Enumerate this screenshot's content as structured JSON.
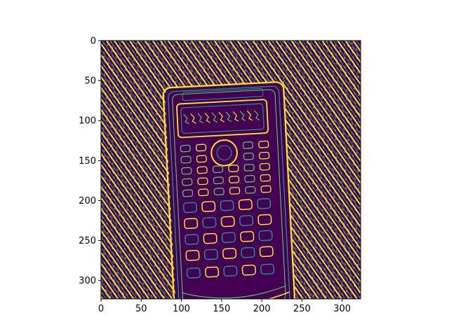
{
  "chart_data": {
    "type": "heatmap",
    "title": "",
    "xlabel": "",
    "ylabel": "",
    "xlim": [
      0,
      323
    ],
    "ylim": [
      323,
      0
    ],
    "x_ticks": [
      0,
      50,
      100,
      150,
      200,
      250,
      300
    ],
    "y_ticks": [
      0,
      50,
      100,
      150,
      200,
      250,
      300
    ],
    "x_tick_labels": [
      "0",
      "50",
      "100",
      "150",
      "200",
      "250",
      "300"
    ],
    "y_tick_labels": [
      "0",
      "50",
      "100",
      "150",
      "200",
      "250",
      "300"
    ],
    "image_size": [
      323,
      323
    ],
    "colormap": "viridis",
    "content": "binary edge map of a scientific calculator on a diagonally striped background",
    "colors": {
      "background": "#440154",
      "edge_primary": "#fde725",
      "edge_secondary": "#21918c",
      "edge_tertiary": "#5ec962"
    }
  }
}
